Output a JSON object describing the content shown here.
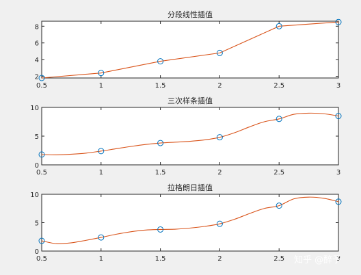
{
  "colors": {
    "curve": "#d95319",
    "marker": "#0072bd",
    "figure_bg": "#f0f0f0",
    "axes_bg": "#ffffff"
  },
  "watermark": "知乎 @醉予",
  "chart_data": [
    {
      "type": "line",
      "title": "分段线性插值",
      "points": {
        "x": [
          0.5,
          1,
          1.5,
          2,
          2.5,
          3
        ],
        "y": [
          1.8,
          2.4,
          3.8,
          4.8,
          8.0,
          8.5
        ]
      },
      "curve": {
        "x": [
          0.5,
          1,
          1.5,
          2,
          2.5,
          3
        ],
        "y": [
          1.8,
          2.4,
          3.8,
          4.8,
          8.0,
          8.5
        ]
      },
      "xlim": [
        0.5,
        3
      ],
      "ylim": [
        1.8,
        8.6
      ],
      "xticks": [
        0.5,
        1,
        1.5,
        2,
        2.5,
        3
      ],
      "xtick_labels": [
        "0.5",
        "1",
        "1.5",
        "2",
        "2.5",
        "3"
      ],
      "yticks": [
        2,
        4,
        6,
        8
      ],
      "ytick_labels": [
        "2",
        "4",
        "6",
        "8"
      ]
    },
    {
      "type": "line",
      "title": "三次样条插值",
      "points": {
        "x": [
          0.5,
          1,
          1.5,
          2,
          2.5,
          3
        ],
        "y": [
          1.8,
          2.4,
          3.8,
          4.8,
          8.0,
          8.5
        ]
      },
      "curve": {
        "x": [
          0.5,
          0.625,
          0.75,
          0.875,
          1,
          1.125,
          1.25,
          1.375,
          1.5,
          1.625,
          1.75,
          1.875,
          2,
          2.125,
          2.25,
          2.375,
          2.5,
          2.625,
          2.75,
          2.875,
          3
        ],
        "y": [
          1.8,
          1.75,
          1.85,
          2.05,
          2.4,
          2.8,
          3.2,
          3.55,
          3.8,
          3.95,
          4.1,
          4.35,
          4.8,
          5.6,
          6.6,
          7.5,
          8.0,
          8.8,
          9.0,
          8.9,
          8.5
        ]
      },
      "xlim": [
        0.5,
        3
      ],
      "ylim": [
        0,
        10
      ],
      "xticks": [
        0.5,
        1,
        1.5,
        2,
        2.5,
        3
      ],
      "xtick_labels": [
        "0.5",
        "1",
        "1.5",
        "2",
        "2.5",
        "3"
      ],
      "yticks": [
        0,
        5,
        10
      ],
      "ytick_labels": [
        "0",
        "5",
        "10"
      ]
    },
    {
      "type": "line",
      "title": "拉格朗日插值",
      "points": {
        "x": [
          0.5,
          1,
          1.5,
          2,
          2.5,
          3
        ],
        "y": [
          1.8,
          2.4,
          3.8,
          4.8,
          8.0,
          8.7
        ]
      },
      "curve": {
        "x": [
          0.5,
          0.625,
          0.75,
          0.875,
          1,
          1.125,
          1.25,
          1.375,
          1.5,
          1.625,
          1.75,
          1.875,
          2,
          2.125,
          2.25,
          2.375,
          2.5,
          2.625,
          2.75,
          2.875,
          3
        ],
        "y": [
          1.8,
          1.3,
          1.45,
          1.9,
          2.4,
          2.95,
          3.4,
          3.7,
          3.8,
          3.85,
          4.05,
          4.35,
          4.8,
          5.6,
          6.6,
          7.5,
          8.0,
          9.2,
          9.5,
          9.3,
          8.7
        ]
      },
      "xlim": [
        0.5,
        3
      ],
      "ylim": [
        0,
        10
      ],
      "xticks": [
        0.5,
        1,
        1.5,
        2,
        2.5,
        3
      ],
      "xtick_labels": [
        "0.5",
        "1",
        "1.5",
        "2",
        "2.5",
        "3"
      ],
      "yticks": [
        0,
        5,
        10
      ],
      "ytick_labels": [
        "0",
        "5",
        "10"
      ]
    }
  ]
}
